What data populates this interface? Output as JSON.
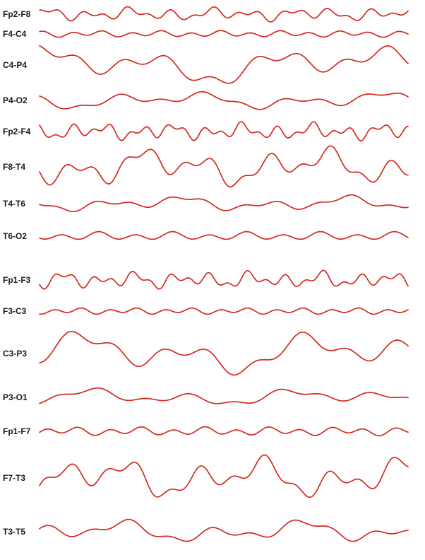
{
  "chart_data": {
    "type": "line",
    "title": "",
    "xlabel": "",
    "ylabel": "",
    "grid": false,
    "legend": "none",
    "trace_color": "#d42a20",
    "channels": [
      {
        "name": "Fp2-F8",
        "baseline": 20,
        "amp": 7,
        "waves": [
          [
            0.11,
            0
          ],
          [
            0.05,
            1.3
          ],
          [
            0.2,
            2.1
          ]
        ]
      },
      {
        "name": "F4-C4",
        "baseline": 48,
        "amp": 3,
        "waves": [
          [
            0.15,
            0.4
          ],
          [
            0.07,
            2.0
          ]
        ]
      },
      {
        "name": "C4-P4",
        "baseline": 92,
        "amp": 20,
        "waves": [
          [
            0.038,
            0.8
          ],
          [
            0.1,
            1.7
          ],
          [
            0.016,
            0.2
          ]
        ]
      },
      {
        "name": "P4-O2",
        "baseline": 142,
        "amp": 9,
        "waves": [
          [
            0.05,
            1.1
          ],
          [
            0.11,
            0.4
          ],
          [
            0.022,
            2.5
          ]
        ]
      },
      {
        "name": "Fp2-F4",
        "baseline": 186,
        "amp": 9,
        "waves": [
          [
            0.13,
            0.3
          ],
          [
            0.06,
            1.8
          ],
          [
            0.24,
            0.9
          ]
        ]
      },
      {
        "name": "F8-T4",
        "baseline": 236,
        "amp": 20,
        "waves": [
          [
            0.07,
            2.2
          ],
          [
            0.15,
            0.6
          ],
          [
            0.028,
            1.4
          ]
        ]
      },
      {
        "name": "T4-T6",
        "baseline": 288,
        "amp": 8,
        "waves": [
          [
            0.055,
            0.5
          ],
          [
            0.12,
            2.6
          ],
          [
            0.025,
            1.0
          ]
        ]
      },
      {
        "name": "T6-O2",
        "baseline": 334,
        "amp": 4,
        "waves": [
          [
            0.12,
            1.5
          ],
          [
            0.06,
            0.2
          ]
        ]
      },
      {
        "name": "Fp1-F3",
        "baseline": 396,
        "amp": 9,
        "waves": [
          [
            0.12,
            0.9
          ],
          [
            0.07,
            2.3
          ],
          [
            0.23,
            0.1
          ]
        ]
      },
      {
        "name": "F3-C3",
        "baseline": 440,
        "amp": 3,
        "waves": [
          [
            0.16,
            1.2
          ],
          [
            0.08,
            0.5
          ]
        ]
      },
      {
        "name": "C3-P3",
        "baseline": 500,
        "amp": 22,
        "waves": [
          [
            0.04,
            1.9
          ],
          [
            0.095,
            0.3
          ],
          [
            0.018,
            2.8
          ]
        ]
      },
      {
        "name": "P3-O1",
        "baseline": 562,
        "amp": 9,
        "waves": [
          [
            0.045,
            0.6
          ],
          [
            0.1,
            1.4
          ],
          [
            0.02,
            2.2
          ]
        ]
      },
      {
        "name": "Fp1-F7",
        "baseline": 610,
        "amp": 4,
        "waves": [
          [
            0.14,
            2.0
          ],
          [
            0.065,
            0.7
          ]
        ]
      },
      {
        "name": "F7-T3",
        "baseline": 676,
        "amp": 22,
        "waves": [
          [
            0.065,
            1.0
          ],
          [
            0.14,
            2.4
          ],
          [
            0.03,
            0.4
          ]
        ]
      },
      {
        "name": "T3-T5",
        "baseline": 752,
        "amp": 12,
        "waves": [
          [
            0.05,
            2.7
          ],
          [
            0.11,
            1.1
          ],
          [
            0.023,
            0.5
          ]
        ]
      }
    ]
  }
}
